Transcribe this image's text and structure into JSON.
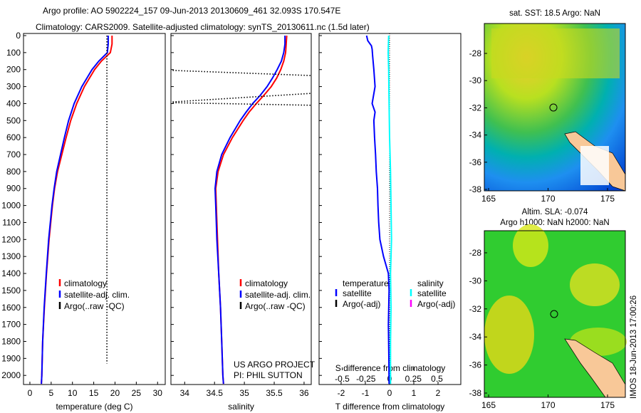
{
  "title": {
    "line1": "Argo profile: AO 5902224_157 09-Jun-2013 20130609_461 32.093S 170.547E",
    "line2": "Climatology: CARS2009. Satellite-adjusted climatology: synTS_20130611.nc (1.5d later)"
  },
  "colors": {
    "climatology": "#ff0000",
    "satellite": "#0000ff",
    "argo": "#000000",
    "sal_satellite": "#00ffff",
    "sal_argo": "#ff00ff"
  },
  "chart_data": [
    {
      "type": "line",
      "id": "temperature",
      "xlabel": "temperature (deg C)",
      "ylabel": "",
      "xlim": [
        -1.5,
        31.8
      ],
      "ylim": [
        2050,
        0
      ],
      "xticks": [
        0,
        5,
        10,
        15,
        20,
        25,
        30
      ],
      "yticks": [
        0,
        100,
        200,
        300,
        400,
        500,
        600,
        700,
        800,
        900,
        1000,
        1100,
        1200,
        1300,
        1400,
        1500,
        1600,
        1700,
        1800,
        1900,
        2000
      ],
      "legend": [
        "climatology",
        "satellite-adj. clim.",
        "Argo(..raw -QC)"
      ],
      "legend_position": "center-left",
      "series": [
        {
          "name": "climatology",
          "depth": [
            0,
            50,
            100,
            150,
            200,
            300,
            400,
            500,
            600,
            700,
            800,
            900,
            1000,
            1200,
            1400,
            1600,
            1800,
            2000,
            2050
          ],
          "values": [
            19.3,
            19.3,
            18.9,
            16.8,
            15.2,
            12.8,
            11.0,
            9.6,
            8.5,
            7.5,
            6.5,
            5.8,
            5.3,
            4.5,
            3.9,
            3.4,
            3.0,
            2.8,
            2.7
          ]
        },
        {
          "name": "satellite-adj. clim.",
          "depth": [
            0,
            50,
            100,
            150,
            200,
            300,
            400,
            500,
            600,
            700,
            800,
            900,
            1000,
            1200,
            1400,
            1600,
            1800,
            2000,
            2050
          ],
          "values": [
            18.4,
            18.4,
            18.2,
            16.2,
            14.6,
            12.2,
            10.4,
            9.1,
            8.1,
            7.2,
            6.3,
            5.7,
            5.2,
            4.4,
            3.85,
            3.35,
            3.0,
            2.8,
            2.7
          ]
        },
        {
          "name": "Argo(..raw -QC)",
          "depth": [
            0,
            1930
          ],
          "values": [
            18.1,
            18.1
          ],
          "style": "dotted"
        }
      ]
    },
    {
      "type": "line",
      "id": "salinity",
      "xlabel": "salinity",
      "xlim": [
        33.77,
        36.12
      ],
      "ylim": [
        2050,
        0
      ],
      "xticks": [
        34,
        34.5,
        35,
        35.5,
        36
      ],
      "legend": [
        "climatology",
        "satellite-adj. clim.",
        "Argo(..raw -QC)"
      ],
      "annotation": [
        "US ARGO PROJECT",
        "PI: PHIL SUTTON"
      ],
      "series": [
        {
          "name": "climatology",
          "depth": [
            0,
            50,
            100,
            150,
            200,
            250,
            300,
            350,
            400,
            450,
            500,
            600,
            700,
            800,
            900,
            1000,
            1200,
            1400,
            1600,
            1800,
            2000,
            2050
          ],
          "values": [
            35.71,
            35.7,
            35.69,
            35.66,
            35.61,
            35.54,
            35.45,
            35.33,
            35.2,
            35.08,
            34.98,
            34.8,
            34.65,
            34.56,
            34.52,
            34.53,
            34.55,
            34.57,
            34.6,
            34.62,
            34.64,
            34.65
          ]
        },
        {
          "name": "satellite-adj. clim.",
          "depth": [
            0,
            50,
            100,
            150,
            200,
            250,
            300,
            350,
            400,
            450,
            500,
            600,
            700,
            800,
            900,
            1000,
            1200,
            1400,
            1600,
            1800,
            2000,
            2050
          ],
          "values": [
            35.68,
            35.68,
            35.66,
            35.62,
            35.55,
            35.47,
            35.38,
            35.27,
            35.14,
            35.03,
            34.93,
            34.76,
            34.62,
            34.54,
            34.51,
            34.52,
            34.54,
            34.57,
            34.6,
            34.62,
            34.64,
            34.65
          ]
        },
        {
          "name": "Argo segment 1",
          "depth": [
            205,
            235
          ],
          "values": [
            33.8,
            36.12
          ],
          "style": "dotted"
        },
        {
          "name": "Argo segment 2",
          "depth": [
            390,
            340
          ],
          "values": [
            33.8,
            36.12
          ],
          "style": "dotted"
        },
        {
          "name": "Argo segment 3",
          "depth": [
            395,
            410
          ],
          "values": [
            33.8,
            36.12
          ],
          "style": "dotted"
        }
      ]
    },
    {
      "type": "line",
      "id": "difference",
      "xlabel": "T difference from climatology",
      "xlabel_top": "S difference from climatology",
      "xlim": [
        -2.91,
        2.94
      ],
      "ylim": [
        2050,
        0
      ],
      "xticks": [
        -2,
        -1,
        0,
        1,
        2
      ],
      "sticks": [
        -0.5,
        -0.25,
        0,
        0.25,
        0.5
      ],
      "slim": [
        -0.5,
        0.5
      ],
      "legend_temperature": {
        "heading": "temperature",
        "items": [
          "satellite",
          "Argo(-adj)"
        ]
      },
      "legend_salinity": {
        "heading": "salinity",
        "items": [
          "satellite",
          "Argo(-adj)"
        ]
      },
      "series": [
        {
          "name": "T satellite",
          "depth": [
            0,
            30,
            60,
            80,
            120,
            200,
            300,
            400,
            450,
            500,
            600,
            700,
            800,
            900,
            1000,
            1100,
            1200,
            1300,
            1400,
            1500,
            1700,
            1900,
            2050
          ],
          "values": [
            -0.95,
            -0.9,
            -0.75,
            -0.72,
            -0.7,
            -0.65,
            -0.6,
            -0.72,
            -0.6,
            -0.65,
            -0.62,
            -0.58,
            -0.55,
            -0.5,
            -0.48,
            -0.45,
            -0.4,
            -0.25,
            -0.05,
            -0.02,
            -0.05,
            -0.03,
            -0.02
          ]
        },
        {
          "name": "S satellite",
          "depth": [
            0,
            100,
            200,
            400,
            600,
            800,
            1000,
            1200,
            1400,
            1600,
            1800,
            2000,
            2050
          ],
          "values": [
            -0.01,
            -0.015,
            -0.01,
            -0.005,
            0.0,
            0.01,
            0.015,
            0.02,
            0.01,
            0.015,
            0.01,
            0.01,
            0.01
          ]
        }
      ]
    }
  ],
  "maps": [
    {
      "title": "sat. SST: 18.5  Argo: NaN",
      "xticks": [
        165,
        170,
        175
      ],
      "yticks": [
        -28,
        -30,
        -32,
        -34,
        -36,
        -38
      ],
      "argo_lon": 170.547,
      "argo_lat": -32.093
    },
    {
      "title1": "Altim. SLA: -0.074",
      "title2": "Argo h1000: NaN h2000: NaN",
      "xticks": [
        165,
        170,
        175
      ],
      "yticks": [
        -28,
        -30,
        -32,
        -34,
        -36,
        -38
      ],
      "argo_lon": 170.547,
      "argo_lat": -32.093
    }
  ],
  "watermark": "IMOS 18-Jun-2013 17:00:26"
}
